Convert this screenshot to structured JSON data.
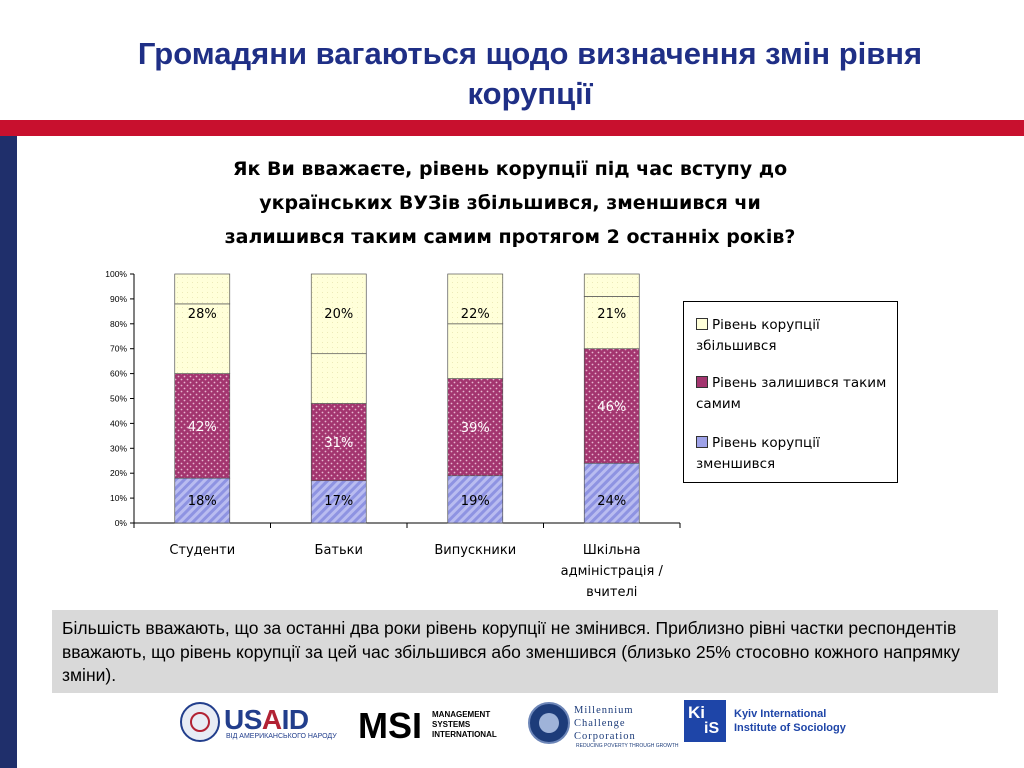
{
  "slide": {
    "title_line1": "Громадяни вагаються щодо визначення змін рівня",
    "title_line2": "корупції"
  },
  "chart_data": {
    "type": "bar",
    "stacked": true,
    "title_lines": [
      "Як Ви вважаєте, рівень корупції під час вступу до",
      "українських ВУЗів збільшився, зменшився чи",
      "залишився таким самим протягом 2 останніх років?"
    ],
    "categories": [
      [
        "Студенти"
      ],
      [
        "Батьки"
      ],
      [
        "Випускники"
      ],
      [
        "Шкільна",
        "адміністрація /",
        "вчителі"
      ]
    ],
    "series": [
      {
        "name": "Рівень корупції зменшився",
        "values": [
          18,
          17,
          19,
          24
        ],
        "labels": [
          "18%",
          "17%",
          "19%",
          "24%"
        ],
        "color": "#9ea2e8",
        "label_color": "#000000"
      },
      {
        "name": "Рівень залишився таким самим",
        "values": [
          42,
          31,
          39,
          46
        ],
        "labels": [
          "42%",
          "31%",
          "39%",
          "46%"
        ],
        "color": "#a3356f",
        "label_color": "#ffffff"
      },
      {
        "name": "Рівень корупції збільшився",
        "values": [
          28,
          20,
          22,
          21
        ],
        "labels": [
          "28%",
          "20%",
          "22%",
          "21%"
        ],
        "color": "#ffffd9",
        "label_color": "#000000"
      }
    ],
    "ylim": [
      0,
      100
    ],
    "y_ticks": [
      "0%",
      "10%",
      "20%",
      "30%",
      "40%",
      "50%",
      "60%",
      "70%",
      "80%",
      "90%",
      "100%"
    ],
    "legend_position": "right",
    "grid": false
  },
  "legend": {
    "items": [
      {
        "line1": "Рівень корупції",
        "line2": "збільшився",
        "color": "#ffffd9"
      },
      {
        "line1": "Рівень залишився таким",
        "line2": "самим",
        "color": "#a3356f"
      },
      {
        "line1": "Рівень корупції",
        "line2": "зменшився",
        "color": "#9ea2e8"
      }
    ]
  },
  "summary": {
    "text": "Більшість вважають, що за останні два роки рівень корупції не змінився. Приблизно рівні частки респондентів вважають, що рівень корупції за цей час збільшився або зменшився (близько 25% стосовно кожного напрямку зміни)."
  },
  "logos": {
    "usaid_u": "US",
    "usaid_a": "A",
    "usaid_id": "ID",
    "usaid_sub": "ВІД АМЕРИКАНСЬКОГО НАРОДУ",
    "msi_mark": "MSI",
    "msi_line1": "MANAGEMENT",
    "msi_line2": "SYSTEMS",
    "msi_line3": "INTERNATIONAL",
    "mcc_line1": "Millennium",
    "mcc_line2": "Challenge",
    "mcc_line3": "Corporation",
    "mcc_tag": "REDUCING POVERTY THROUGH GROWTH",
    "kiis_k": "Ki",
    "kiis_s": "iS",
    "kiis_line1": "Kyiv International",
    "kiis_line2": "Institute of Sociology"
  }
}
